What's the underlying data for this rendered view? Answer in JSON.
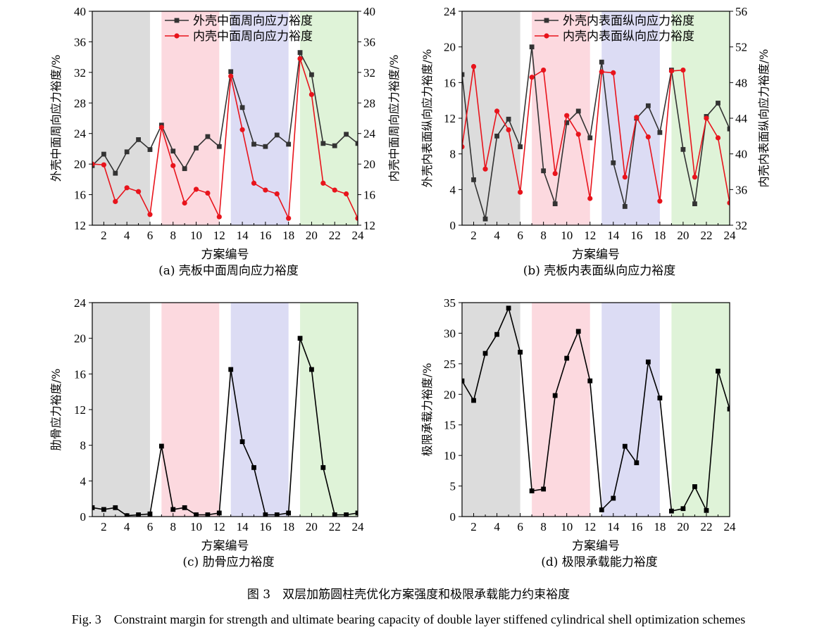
{
  "figure": {
    "caption_cn": "图 3　双层加筋圆柱壳优化方案强度和极限承载能力约束裕度",
    "caption_en": "Fig. 3　Constraint margin for strength and ultimate bearing capacity of double layer stiffened cylindrical shell optimization schemes"
  },
  "colors": {
    "band1": "#dcdcdc",
    "band2": "#fcd9df",
    "band3": "#dcdcf4",
    "band4": "#dff3d8",
    "series_black": "#333333",
    "series_red": "#e8141c"
  },
  "chart_data": [
    {
      "type": "line",
      "panel_caption": "(a) 壳板中面周向应力裕度",
      "xlabel": "方案编号",
      "ylabel": "外壳中面周向应力裕度/%",
      "y2label": "内壳中面周向应力裕度/%",
      "xlim": [
        1,
        24
      ],
      "ylim": [
        12,
        40
      ],
      "y2lim": [
        12,
        40
      ],
      "xticks": [
        2,
        4,
        6,
        8,
        10,
        12,
        14,
        16,
        18,
        20,
        22,
        24
      ],
      "yticks": [
        12,
        16,
        20,
        24,
        28,
        32,
        36,
        40
      ],
      "y2ticks": [
        12,
        16,
        20,
        24,
        28,
        32,
        36,
        40
      ],
      "bands": [
        [
          1,
          6
        ],
        [
          7,
          12
        ],
        [
          13,
          18
        ],
        [
          19,
          24
        ]
      ],
      "legend_position": "top-right",
      "x": [
        1,
        2,
        3,
        4,
        5,
        6,
        7,
        8,
        9,
        10,
        11,
        12,
        13,
        14,
        15,
        16,
        17,
        18,
        19,
        20,
        21,
        22,
        23,
        24
      ],
      "series": [
        {
          "name": "外壳中面周向应力裕度",
          "axis": "left",
          "marker": "square",
          "values": [
            19.8,
            21.3,
            18.8,
            21.6,
            23.2,
            21.9,
            25.1,
            21.7,
            19.4,
            22.1,
            23.6,
            22.3,
            32.1,
            27.4,
            22.6,
            22.3,
            23.8,
            22.6,
            34.6,
            31.7,
            22.7,
            22.4,
            23.9,
            22.7
          ]
        },
        {
          "name": "内壳中面周向应力裕度",
          "axis": "right",
          "marker": "circle",
          "values": [
            20.0,
            19.9,
            15.1,
            16.9,
            16.4,
            13.4,
            24.8,
            19.8,
            14.9,
            16.7,
            16.2,
            13.1,
            31.5,
            24.5,
            17.5,
            16.6,
            16.1,
            12.9,
            33.8,
            29.1,
            17.5,
            16.6,
            16.1,
            12.9
          ]
        }
      ]
    },
    {
      "type": "line",
      "panel_caption": "(b) 壳板内表面纵向应力裕度",
      "xlabel": "方案编号",
      "ylabel": "外壳内表面纵向应力裕度/%",
      "y2label": "内壳内表面纵向应力裕度/%",
      "xlim": [
        1,
        24
      ],
      "ylim": [
        0,
        24
      ],
      "y2lim": [
        32,
        56
      ],
      "xticks": [
        2,
        4,
        6,
        8,
        10,
        12,
        14,
        16,
        18,
        20,
        22,
        24
      ],
      "yticks": [
        0,
        4,
        8,
        12,
        16,
        20,
        24
      ],
      "y2ticks": [
        32,
        36,
        40,
        44,
        48,
        52,
        56
      ],
      "bands": [
        [
          1,
          6
        ],
        [
          7,
          12
        ],
        [
          13,
          18
        ],
        [
          19,
          24
        ]
      ],
      "legend_position": "top-right",
      "x": [
        1,
        2,
        3,
        4,
        5,
        6,
        7,
        8,
        9,
        10,
        11,
        12,
        13,
        14,
        15,
        16,
        17,
        18,
        19,
        20,
        21,
        22,
        23,
        24
      ],
      "series": [
        {
          "name": "外壳内表面纵向应力裕度",
          "axis": "left",
          "marker": "square",
          "values": [
            16.9,
            5.1,
            0.7,
            10.0,
            11.9,
            8.8,
            20.0,
            6.1,
            2.4,
            11.5,
            12.8,
            9.8,
            18.3,
            7.0,
            2.1,
            12.0,
            13.4,
            10.4,
            17.4,
            8.5,
            2.4,
            12.2,
            13.7,
            10.8
          ]
        },
        {
          "name": "内壳内表面纵向应力裕度",
          "axis": "right",
          "marker": "circle",
          "values": [
            40.8,
            49.8,
            38.3,
            44.8,
            42.7,
            35.7,
            48.6,
            49.4,
            37.8,
            44.3,
            42.2,
            35.0,
            49.2,
            49.1,
            37.4,
            44.1,
            41.9,
            34.7,
            49.3,
            49.4,
            37.4,
            44.0,
            41.8,
            34.5
          ]
        }
      ]
    },
    {
      "type": "line",
      "panel_caption": "(c) 肋骨应力裕度",
      "xlabel": "方案编号",
      "ylabel": "肋骨应力裕度/%",
      "xlim": [
        1,
        24
      ],
      "ylim": [
        0,
        24
      ],
      "xticks": [
        2,
        4,
        6,
        8,
        10,
        12,
        14,
        16,
        18,
        20,
        22,
        24
      ],
      "yticks": [
        0,
        4,
        8,
        12,
        16,
        20,
        24
      ],
      "bands": [
        [
          1,
          6
        ],
        [
          7,
          12
        ],
        [
          13,
          18
        ],
        [
          19,
          24
        ]
      ],
      "x": [
        1,
        2,
        3,
        4,
        5,
        6,
        7,
        8,
        9,
        10,
        11,
        12,
        13,
        14,
        15,
        16,
        17,
        18,
        19,
        20,
        21,
        22,
        23,
        24
      ],
      "series": [
        {
          "marker": "square",
          "values": [
            1.0,
            0.8,
            1.0,
            0.1,
            0.2,
            0.3,
            7.9,
            0.8,
            1.0,
            0.2,
            0.2,
            0.4,
            16.5,
            8.4,
            5.5,
            0.2,
            0.2,
            0.4,
            20.0,
            16.5,
            5.5,
            0.2,
            0.2,
            0.4
          ]
        }
      ]
    },
    {
      "type": "line",
      "panel_caption": "(d) 极限承载能力裕度",
      "xlabel": "方案编号",
      "ylabel": "极限承载力裕度/%",
      "xlim": [
        1,
        24
      ],
      "ylim": [
        0,
        35
      ],
      "xticks": [
        2,
        4,
        6,
        8,
        10,
        12,
        14,
        16,
        18,
        20,
        22,
        24
      ],
      "yticks": [
        0,
        5,
        10,
        15,
        20,
        25,
        30,
        35
      ],
      "bands": [
        [
          1,
          6
        ],
        [
          7,
          12
        ],
        [
          13,
          18
        ],
        [
          19,
          24
        ]
      ],
      "x": [
        1,
        2,
        3,
        4,
        5,
        6,
        7,
        8,
        9,
        10,
        11,
        12,
        13,
        14,
        15,
        16,
        17,
        18,
        19,
        20,
        21,
        22,
        23,
        24
      ],
      "series": [
        {
          "marker": "square",
          "values": [
            22.2,
            19.0,
            26.7,
            29.8,
            34.1,
            26.9,
            4.2,
            4.5,
            19.8,
            25.9,
            30.3,
            22.2,
            1.1,
            3.0,
            11.5,
            8.8,
            25.3,
            19.4,
            0.9,
            1.3,
            4.9,
            1.0,
            23.8,
            17.6
          ]
        }
      ]
    }
  ]
}
